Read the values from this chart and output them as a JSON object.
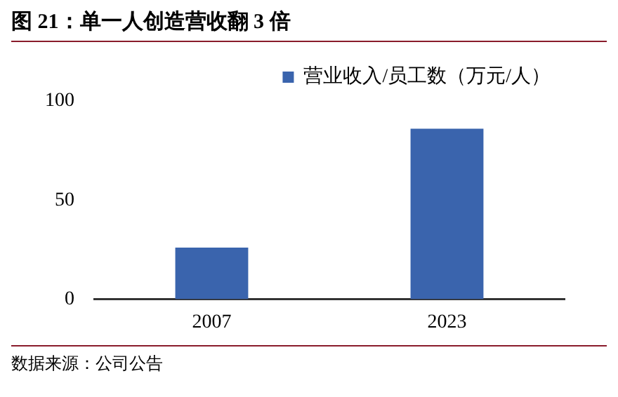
{
  "chart_data": {
    "type": "bar",
    "title": "图 21：单一人创造营收翻 3 倍",
    "categories": [
      "2007",
      "2023"
    ],
    "series": [
      {
        "name": "营业收入/员工数（万元/人）",
        "color": "#3a64ad",
        "values": [
          26,
          86
        ]
      }
    ],
    "ylim": [
      0,
      100
    ],
    "yticks": [
      0,
      50,
      100
    ],
    "grid": false,
    "legend": "top",
    "annotations": [
      "数据来源：公司公告"
    ]
  }
}
